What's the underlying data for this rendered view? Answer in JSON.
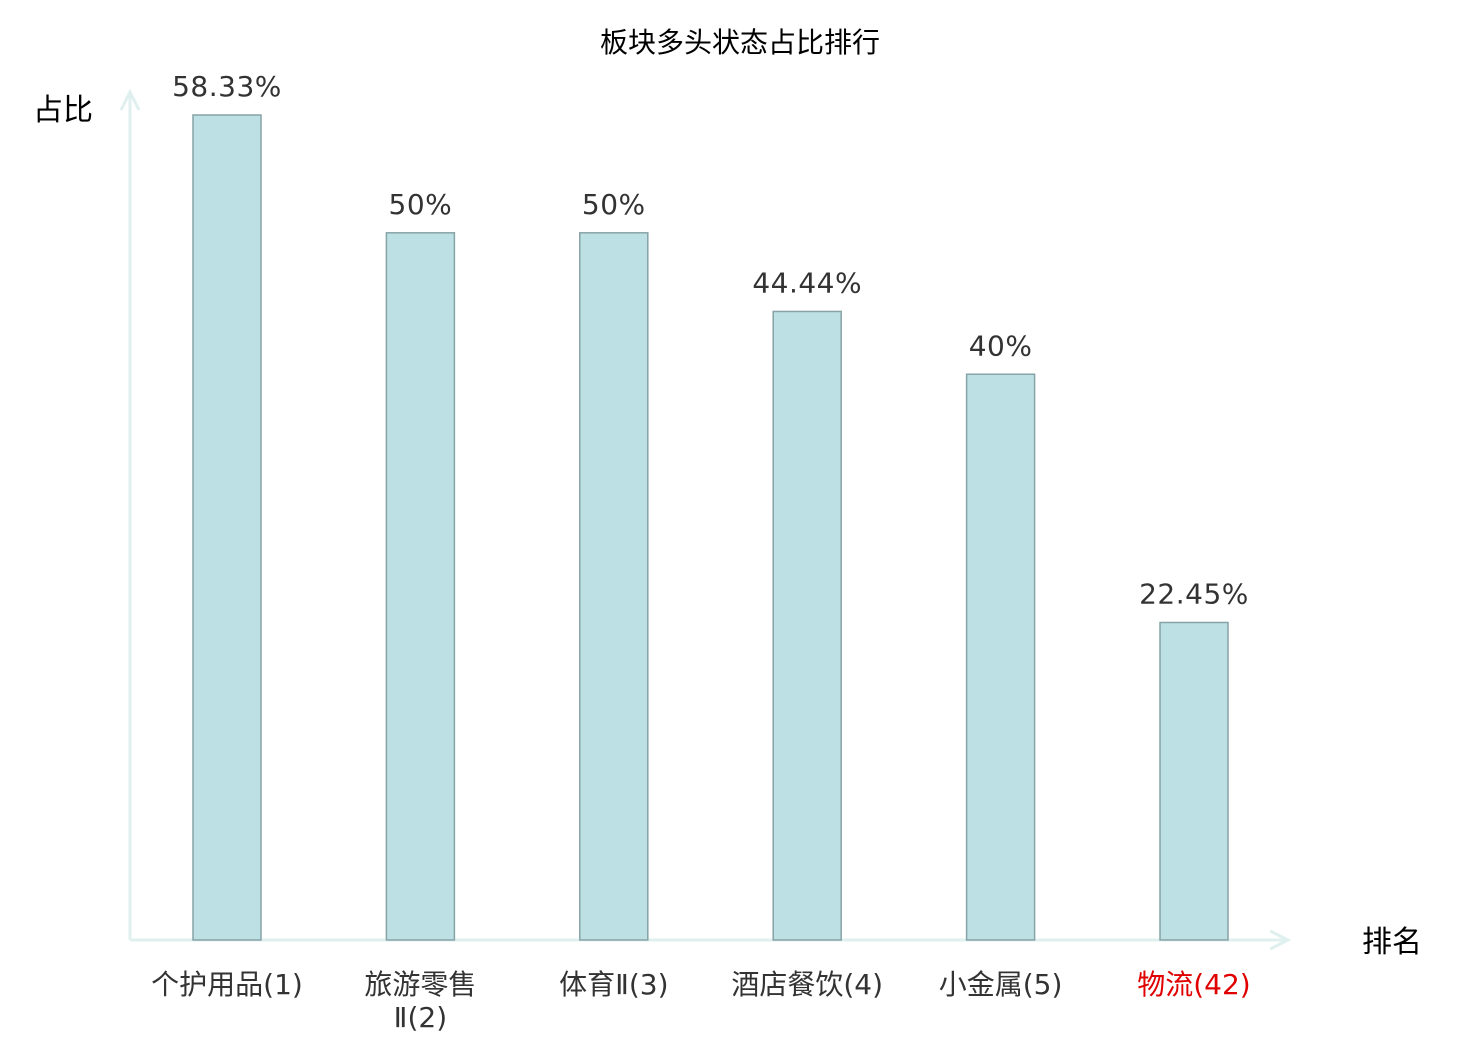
{
  "chart_data": {
    "type": "bar",
    "title": "板块多头状态占比排行",
    "ylabel": "占比",
    "xlabel": "排名",
    "categories": [
      [
        "个护用品(1)"
      ],
      [
        "旅游零售",
        "Ⅱ(2)"
      ],
      [
        "体育Ⅱ(3)"
      ],
      [
        "酒店餐饮(4)"
      ],
      [
        "小金属(5)"
      ],
      [
        "物流(42)"
      ]
    ],
    "values": [
      58.33,
      50,
      50,
      44.44,
      40,
      22.45
    ],
    "value_labels": [
      "58.33%",
      "50%",
      "50%",
      "44.44%",
      "40%",
      "22.45%"
    ],
    "highlight_index": 5,
    "ylim": [
      0,
      60
    ],
    "grid": false,
    "colors": {
      "bar_fill": "#bce0e3",
      "bar_stroke": "#86a3a7",
      "axis": "#dff0ee",
      "text": "#333333",
      "title": "#000000",
      "highlight": "#e00000"
    }
  }
}
